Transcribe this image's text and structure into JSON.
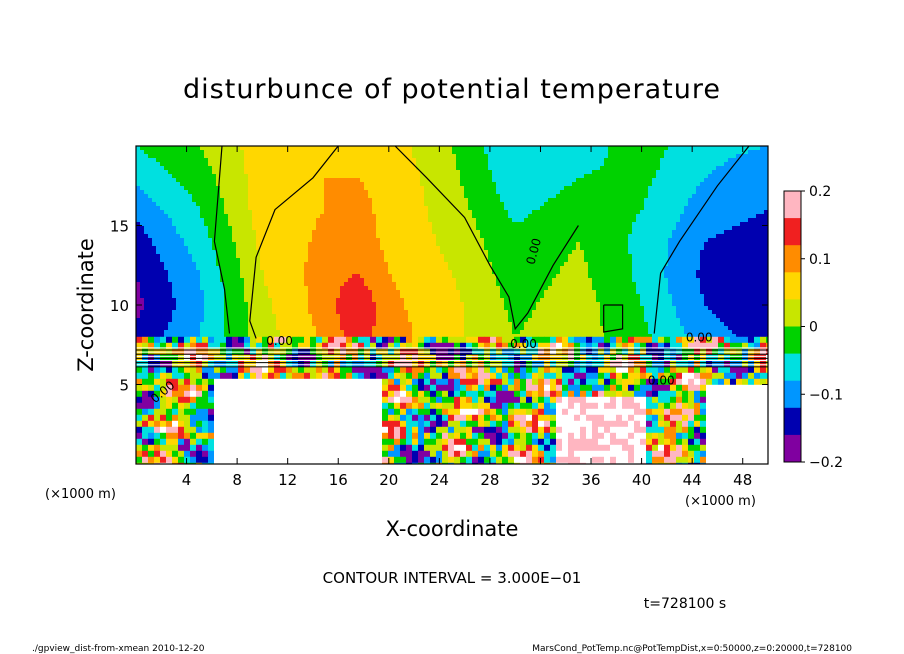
{
  "chart_data": {
    "type": "heatmap",
    "title": "disturbunce of potential temperature",
    "xlabel": "X-coordinate",
    "ylabel": "Z-coordinate",
    "x_unit": "(×1000 m)",
    "y_unit": "(×1000 m)",
    "xlim": [
      0,
      50
    ],
    "ylim": [
      0,
      20
    ],
    "x_ticks": [
      "4",
      "8",
      "12",
      "16",
      "20",
      "24",
      "28",
      "32",
      "36",
      "40",
      "44",
      "48"
    ],
    "y_ticks": [
      "5",
      "10",
      "15"
    ],
    "colorbar": {
      "range": [
        -0.2,
        0.2
      ],
      "tick_labels": [
        "0.2",
        "0.1",
        "0",
        "−0.1",
        "−0.2"
      ],
      "colors": [
        "#ffb6c1",
        "#f02020",
        "#ff8c00",
        "#ffd700",
        "#c8e600",
        "#00d200",
        "#00e0e0",
        "#0096ff",
        "#0000b0",
        "#8000a0"
      ]
    },
    "contour_labels": [
      "0.00",
      "0.00",
      "0.00",
      "0.00",
      "0.00",
      "0.00"
    ],
    "approx_field": {
      "x_grid": [
        0,
        5,
        10,
        15,
        17.5,
        20,
        25,
        30,
        35,
        40,
        45,
        50
      ],
      "z_grid": [
        8,
        10,
        12,
        14,
        16,
        18,
        20
      ],
      "values": [
        [
          -0.15,
          -0.08,
          0.02,
          0.09,
          0.14,
          0.1,
          0.05,
          0.0,
          0.02,
          -0.03,
          -0.1,
          -0.14
        ],
        [
          -0.17,
          -0.09,
          0.03,
          0.1,
          0.16,
          0.09,
          0.05,
          -0.01,
          0.02,
          -0.04,
          -0.12,
          -0.16
        ],
        [
          -0.16,
          -0.08,
          0.04,
          0.1,
          0.12,
          0.08,
          0.04,
          -0.02,
          0.01,
          -0.05,
          -0.13,
          -0.15
        ],
        [
          -0.14,
          -0.06,
          0.05,
          0.09,
          0.1,
          0.07,
          0.03,
          -0.03,
          0.0,
          -0.05,
          -0.12,
          -0.14
        ],
        [
          -0.11,
          -0.04,
          0.06,
          0.08,
          0.09,
          0.07,
          0.02,
          -0.05,
          -0.02,
          -0.04,
          -0.1,
          -0.12
        ],
        [
          -0.07,
          -0.02,
          0.06,
          0.08,
          0.08,
          0.07,
          0.01,
          -0.07,
          -0.04,
          -0.03,
          -0.08,
          -0.1
        ],
        [
          -0.04,
          0.0,
          0.06,
          0.07,
          0.07,
          0.06,
          0.0,
          -0.08,
          -0.06,
          -0.02,
          -0.07,
          -0.08
        ]
      ]
    }
  },
  "contour_interval_text": "CONTOUR INTERVAL = 3.000E−01",
  "time_text": "t=728100 s",
  "footer_left": "./gpview_dist-from-xmean  2010-12-20",
  "footer_right": "MarsCond_PotTemp.nc@PotTempDist,x=0:50000,z=0:20000,t=728100"
}
